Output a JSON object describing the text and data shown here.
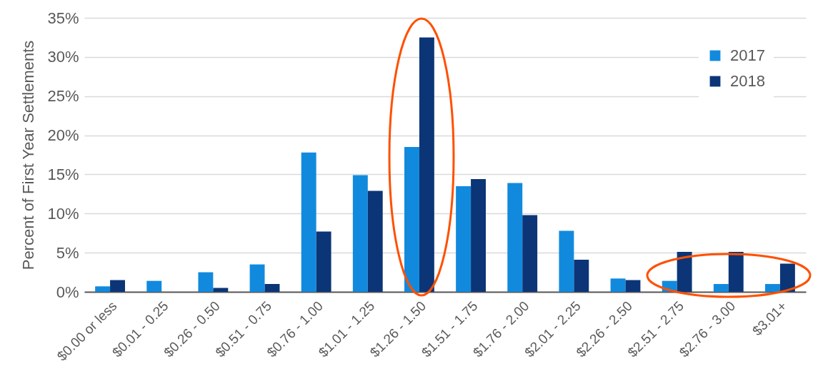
{
  "chart_data": {
    "type": "bar",
    "ylabel": "Percent of First Year Settlements",
    "categories": [
      "$0.00 or less",
      "$0.01 - 0.25",
      "$0.26 - 0.50",
      "$0.51 - 0.75",
      "$0.76 - 1.00",
      "$1.01 - 1.25",
      "$1.26 - 1.50",
      "$1.51 - 1.75",
      "$1.76 - 2.00",
      "$2.01 - 2.25",
      "$2.26 - 2.50",
      "$2.51 - 2.75",
      "$2.76 - 3.00",
      "$3.01+"
    ],
    "series": [
      {
        "name": "2017",
        "color": "#118ade",
        "values": [
          0.7,
          1.4,
          2.5,
          3.5,
          17.8,
          14.9,
          18.5,
          13.5,
          13.9,
          7.8,
          1.7,
          1.4,
          1.0,
          1.0
        ]
      },
      {
        "name": "2018",
        "color": "#0b3577",
        "values": [
          1.5,
          0,
          0.5,
          1.0,
          7.7,
          12.9,
          32.5,
          14.4,
          9.8,
          4.1,
          1.5,
          5.1,
          5.1,
          3.6
        ]
      }
    ],
    "ylim": [
      0,
      35
    ],
    "yticks": [
      {
        "value": 0,
        "label": "0%"
      },
      {
        "value": 5,
        "label": "5%"
      },
      {
        "value": 10,
        "label": "10%"
      },
      {
        "value": 15,
        "label": "15%"
      },
      {
        "value": 20,
        "label": "20%"
      },
      {
        "value": 25,
        "label": "25%"
      },
      {
        "value": 30,
        "label": "30%"
      },
      {
        "value": 35,
        "label": "35%"
      }
    ],
    "grid": "y",
    "legend": "top right"
  }
}
